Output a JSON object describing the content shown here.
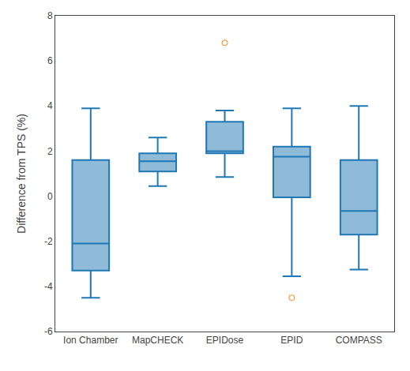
{
  "chart_data": {
    "type": "box",
    "ylabel": "Difference from TPS (%)",
    "categories": [
      "Ion Chamber",
      "MapCHECK",
      "EPIDose",
      "EPID",
      "COMPASS"
    ],
    "boxes": [
      {
        "whislo": -4.5,
        "q1": -3.3,
        "median": -2.1,
        "q3": 1.6,
        "whishi": 3.9,
        "fliers": []
      },
      {
        "whislo": 0.45,
        "q1": 1.1,
        "median": 1.55,
        "q3": 1.9,
        "whishi": 2.6,
        "fliers": []
      },
      {
        "whislo": 0.85,
        "q1": 1.9,
        "median": 2.0,
        "q3": 3.3,
        "whishi": 3.8,
        "fliers": [
          6.8
        ]
      },
      {
        "whislo": -3.55,
        "q1": -0.05,
        "median": 1.75,
        "q3": 2.2,
        "whishi": 3.9,
        "fliers": [
          -4.5
        ]
      },
      {
        "whislo": -3.25,
        "q1": -1.7,
        "median": -0.65,
        "q3": 1.6,
        "whishi": 4.0,
        "fliers": []
      }
    ],
    "ylim": [
      -6,
      8
    ],
    "yticks": [
      -6,
      -4,
      -2,
      0,
      2,
      4,
      6,
      8
    ],
    "grid": false
  }
}
